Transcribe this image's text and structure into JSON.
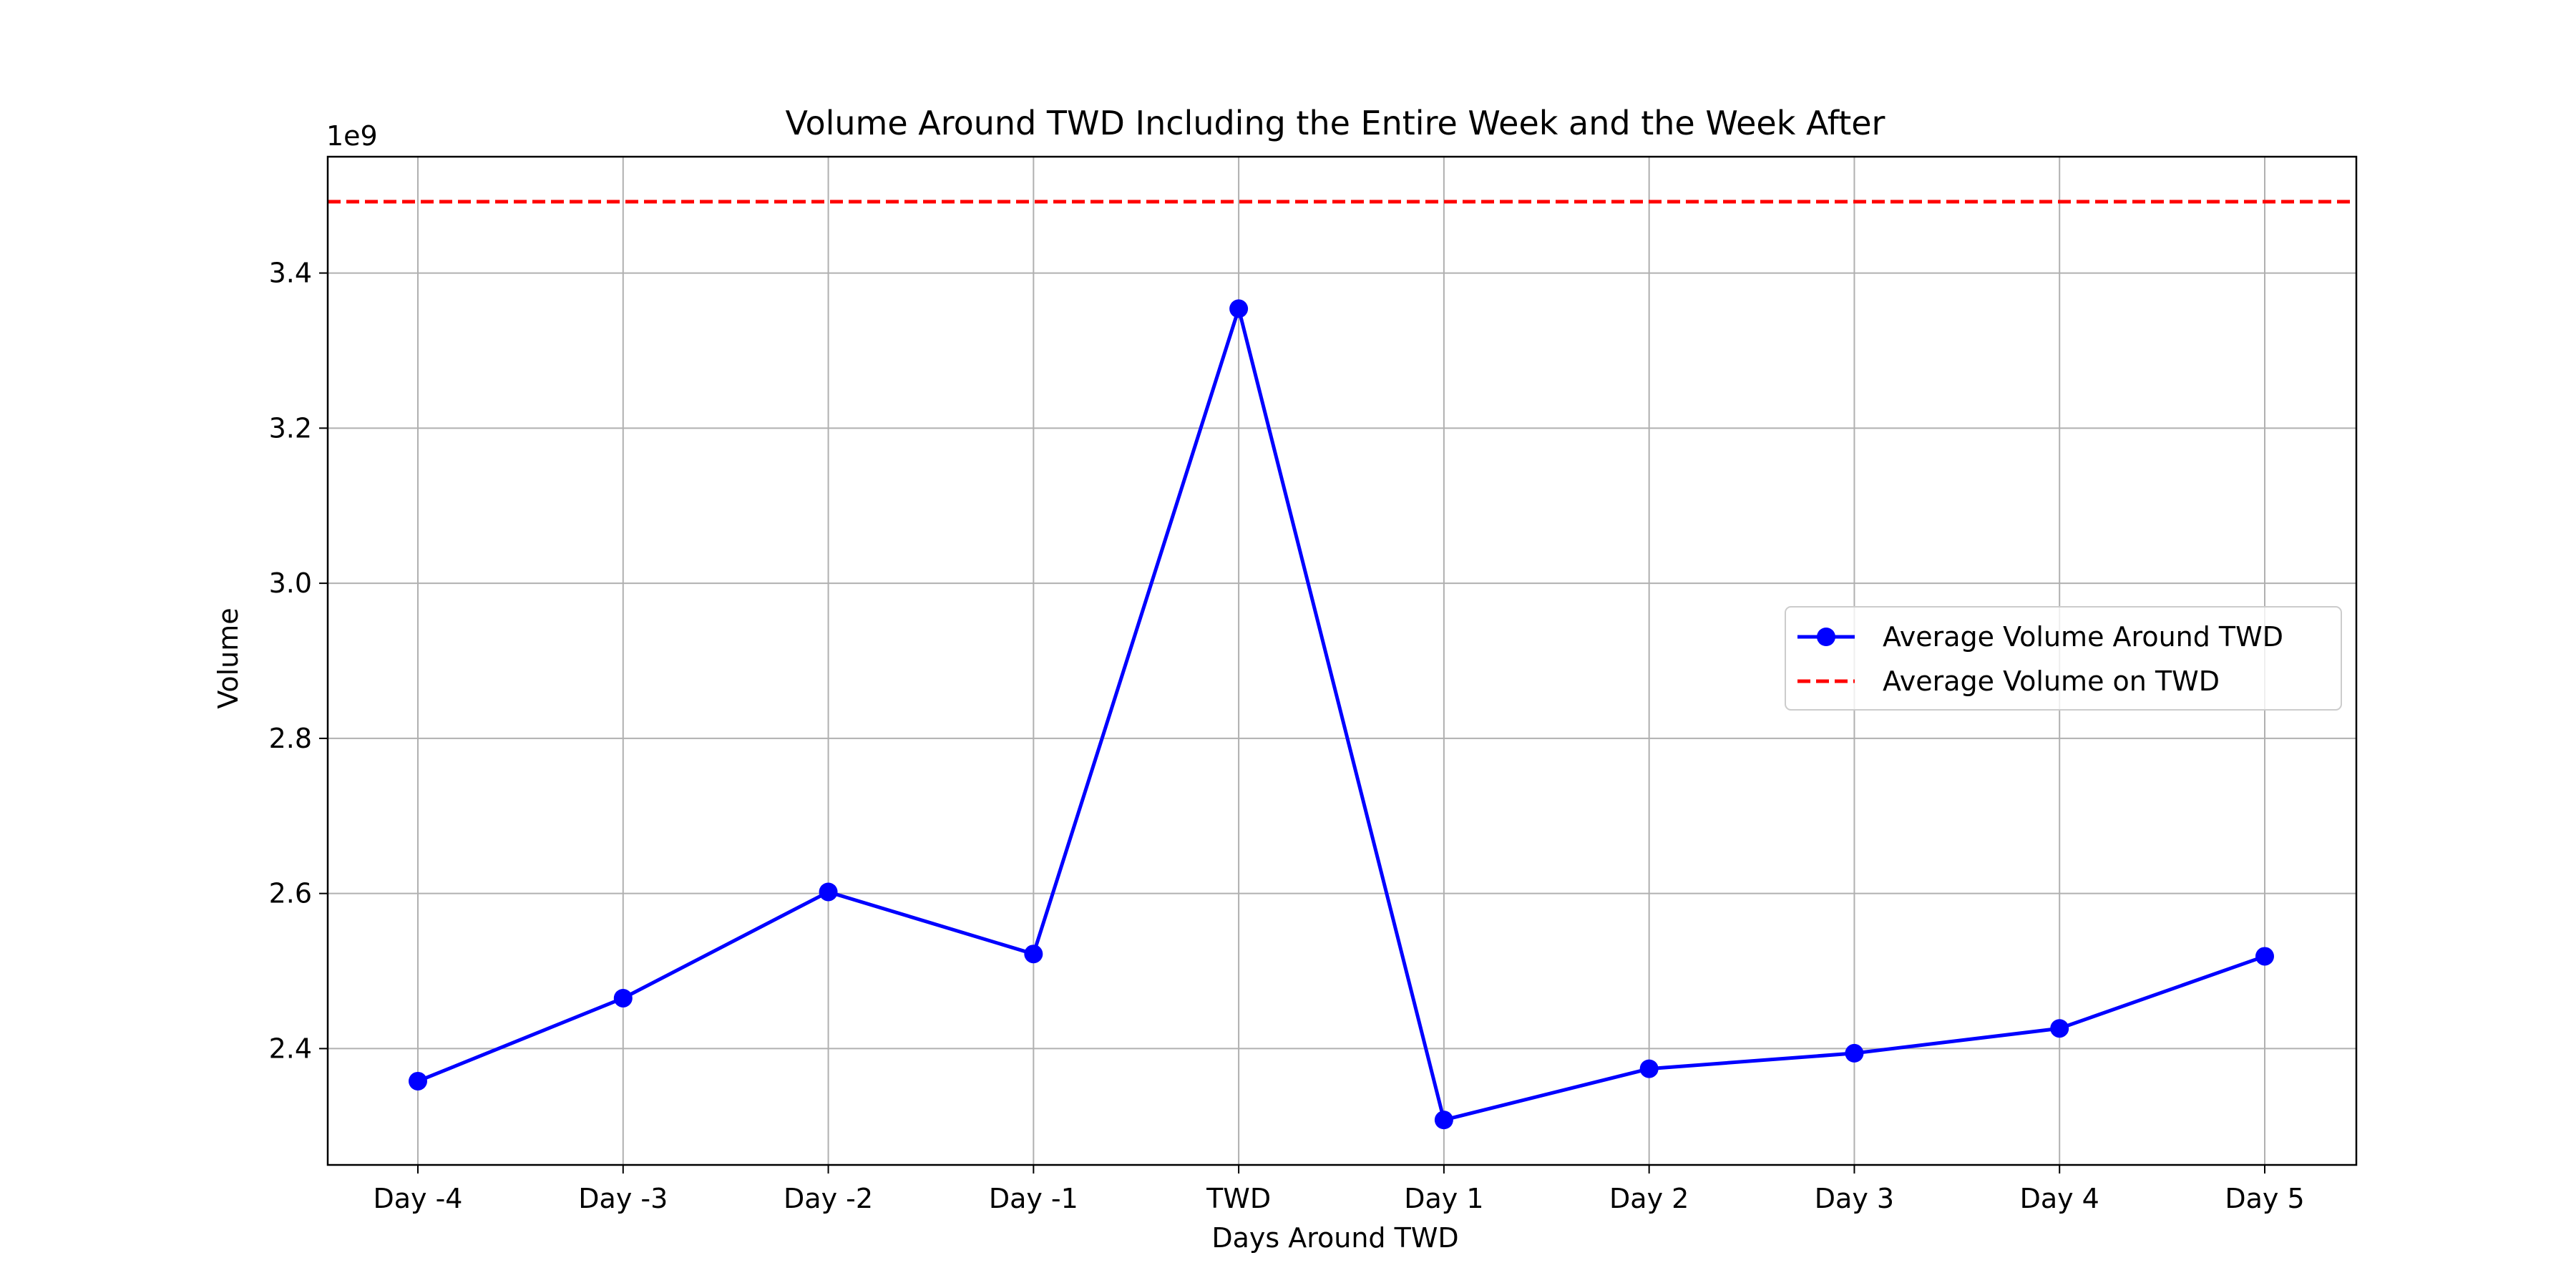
{
  "chart_data": {
    "type": "line",
    "title": "Volume Around TWD Including the Entire Week and the Week After",
    "xlabel": "Days Around TWD",
    "ylabel": "Volume",
    "y_offset_label": "1e9",
    "categories": [
      "Day -4",
      "Day -3",
      "Day -2",
      "Day -1",
      "TWD",
      "Day 1",
      "Day 2",
      "Day 3",
      "Day 4",
      "Day 5"
    ],
    "y_ticks": [
      2.4,
      2.6,
      2.8,
      3.0,
      3.2,
      3.4
    ],
    "y_tick_labels": [
      "2.4",
      "2.6",
      "2.8",
      "3.0",
      "3.2",
      "3.4"
    ],
    "ylim": [
      2.25,
      3.55
    ],
    "grid": true,
    "legend_position": "center-right",
    "series": [
      {
        "name": "Average Volume Around TWD",
        "color": "#0000ff",
        "marker": "circle",
        "values": [
          2.358,
          2.465,
          2.602,
          2.522,
          3.354,
          2.308,
          2.374,
          2.394,
          2.426,
          2.519
        ]
      }
    ],
    "reference_lines": [
      {
        "name": "Average Volume on TWD",
        "color": "#ff0000",
        "style": "dashed",
        "value": 3.492
      }
    ]
  }
}
